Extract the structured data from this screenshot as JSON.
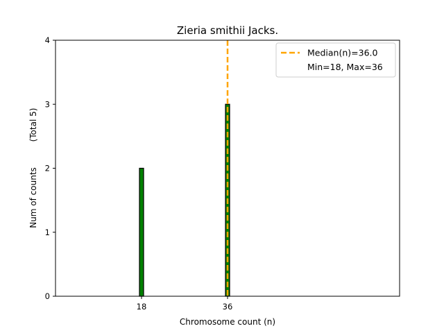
{
  "chart_data": {
    "type": "bar",
    "title": "Zieria smithii Jacks.",
    "xlabel": "Chromosome count (n)",
    "ylabel": "Num of counts",
    "ylabel_total": "(Total 5)",
    "xlim": [
      0,
      72
    ],
    "ylim": [
      0,
      4
    ],
    "x": [
      18,
      36
    ],
    "values": [
      2,
      3
    ],
    "xticks": [
      18,
      36
    ],
    "yticks": [
      0,
      1,
      2,
      3,
      4
    ],
    "bar_color": "#008000",
    "bar_edge_color": "#000000",
    "median": 36.0,
    "median_color": "#FFA500",
    "legend": {
      "position": "top-right",
      "entries": [
        "Median(n)=36.0",
        "Min=18, Max=36"
      ]
    },
    "grid": false
  }
}
